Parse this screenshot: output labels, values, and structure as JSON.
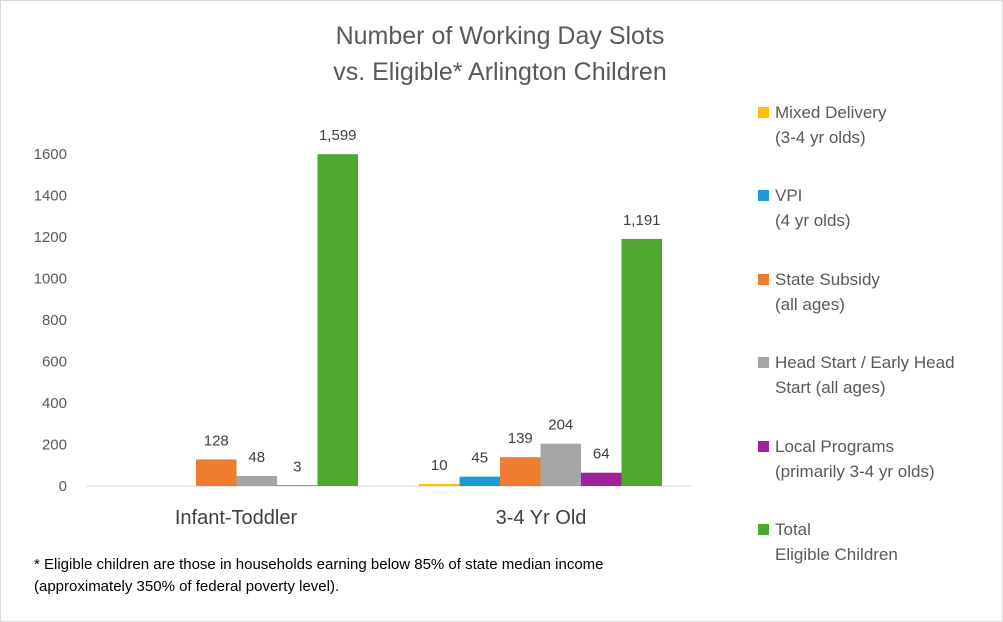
{
  "chart_data": {
    "type": "bar",
    "title": [
      "Number of Working Day Slots",
      "vs. Eligible* Arlington Children"
    ],
    "xlabel": "",
    "ylabel": "",
    "ylim": [
      0,
      1600
    ],
    "yticks": [
      0,
      200,
      400,
      600,
      800,
      1000,
      1200,
      1400,
      1600
    ],
    "grid": false,
    "legend_position": "right",
    "categories": [
      "Infant-Toddler",
      "3-4 Yr Old"
    ],
    "series": [
      {
        "name": "Mixed Delivery (3-4 yr olds)",
        "legend_lines": [
          "Mixed Delivery",
          "(3-4 yr olds)"
        ],
        "color": "#ffc000",
        "values": [
          null,
          10
        ],
        "labels": [
          "",
          "10"
        ]
      },
      {
        "name": "VPI (4 yr olds)",
        "legend_lines": [
          "VPI",
          "(4 yr olds)"
        ],
        "color": "#1c9ad6",
        "values": [
          null,
          45
        ],
        "labels": [
          "",
          "45"
        ]
      },
      {
        "name": "State Subsidy (all ages)",
        "legend_lines": [
          "State Subsidy",
          "(all ages)"
        ],
        "color": "#ed7d31",
        "values": [
          128,
          139
        ],
        "labels": [
          "128",
          "139"
        ]
      },
      {
        "name": "Head Start / Early Head Start (all ages)",
        "legend_lines": [
          "Head Start / Early Head",
          "Start (all ages)"
        ],
        "color": "#a5a5a5",
        "values": [
          48,
          204
        ],
        "labels": [
          "48",
          "204"
        ]
      },
      {
        "name": "Local Programs (primarily 3-4 yr olds)",
        "legend_lines": [
          "Local Programs",
          "(primarily 3-4 yr olds)"
        ],
        "color": "#a0219b",
        "values": [
          3,
          64
        ],
        "labels": [
          "3",
          "64"
        ]
      },
      {
        "name": "Total Eligible Children",
        "legend_lines": [
          "Total",
          "Eligible Children"
        ],
        "color": "#4ea72e",
        "values": [
          1599,
          1191
        ],
        "labels": [
          "1,599",
          "1,191"
        ]
      }
    ]
  },
  "footnote": [
    "* Eligible children are those in households earning  below 85% of state median income",
    "(approximately 350% of federal poverty level)."
  ]
}
